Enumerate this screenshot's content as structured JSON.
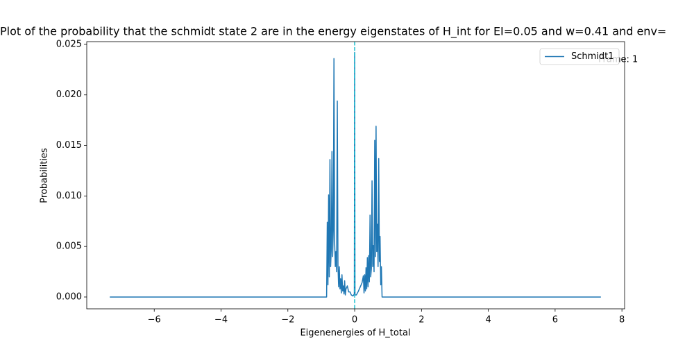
{
  "chart_data": {
    "type": "line",
    "title": "Plot of the probability that the schmidt state 2  are in the energy eigenstates of H_int for EI=0.05 and w=0.41 and env=",
    "x_label": "Eigenenergies of H_total",
    "y_label": "Probabilities",
    "annotation": "Frame: 1",
    "legend": "upper right",
    "vline_x": 0,
    "vline_color": "#17becf",
    "x": [
      -7.33,
      -0.84,
      -0.82,
      -0.8,
      -0.78,
      -0.76,
      -0.74,
      -0.72,
      -0.7,
      -0.68,
      -0.66,
      -0.64,
      -0.62,
      -0.6,
      -0.58,
      -0.56,
      -0.54,
      -0.52,
      -0.5,
      -0.48,
      -0.46,
      -0.44,
      -0.42,
      -0.4,
      -0.38,
      -0.36,
      -0.34,
      -0.32,
      -0.3,
      -0.28,
      -0.26,
      -0.22,
      -0.18,
      -0.14,
      -0.1,
      -0.05,
      -0.01,
      0,
      0.01,
      0.05,
      0.1,
      0.14,
      0.18,
      0.22,
      0.26,
      0.28,
      0.3,
      0.32,
      0.34,
      0.36,
      0.38,
      0.4,
      0.42,
      0.44,
      0.46,
      0.48,
      0.5,
      0.52,
      0.54,
      0.56,
      0.58,
      0.6,
      0.62,
      0.64,
      0.66,
      0.68,
      0.7,
      0.72,
      0.74,
      0.76,
      0.78,
      0.8,
      0.82,
      7.37
    ],
    "series": [
      {
        "name": "Schmidt1",
        "color": "#1f77b4",
        "values": [
          0,
          0,
          0.0074,
          0.0012,
          0.0101,
          0.002,
          0.0136,
          0.003,
          0.0048,
          0.0144,
          0.004,
          0.0066,
          0.0236,
          0.0055,
          0.003,
          0.0045,
          0.0025,
          0.0194,
          0.0031,
          0.001,
          0.003,
          0.0008,
          0.0018,
          0.0004,
          0.0022,
          0.0006,
          0.0011,
          0.0003,
          0.0016,
          0.0002,
          0.0008,
          0.0011,
          0.0005,
          0.0005,
          0.0002,
          0.0001,
          0.0003,
          0.0242,
          0.0002,
          0.0002,
          0.0005,
          0.0008,
          0.0011,
          0.0014,
          0.0021,
          0.0004,
          0.0022,
          0.0006,
          0.0029,
          0.0008,
          0.0039,
          0.001,
          0.0041,
          0.0015,
          0.0081,
          0.002,
          0.0028,
          0.0115,
          0.003,
          0.0051,
          0.0025,
          0.0155,
          0.004,
          0.0169,
          0.0045,
          0.0072,
          0.003,
          0.0137,
          0.0035,
          0.006,
          0.0012,
          0.003,
          0,
          0
        ]
      }
    ],
    "xlim": [
      -8.02,
      8.08
    ],
    "ylim": [
      -0.00117,
      0.02527
    ],
    "xticks": [
      {
        "value": -6,
        "label": "−6"
      },
      {
        "value": -4,
        "label": "−4"
      },
      {
        "value": -2,
        "label": "−2"
      },
      0,
      2,
      4,
      6,
      8
    ],
    "yticks": [
      {
        "value": 0,
        "label": "0.000"
      },
      {
        "value": 0.005,
        "label": "0.005"
      },
      {
        "value": 0.01,
        "label": "0.010"
      },
      {
        "value": 0.015,
        "label": "0.015"
      },
      {
        "value": 0.02,
        "label": "0.020"
      },
      {
        "value": 0.025,
        "label": "0.025"
      }
    ]
  }
}
